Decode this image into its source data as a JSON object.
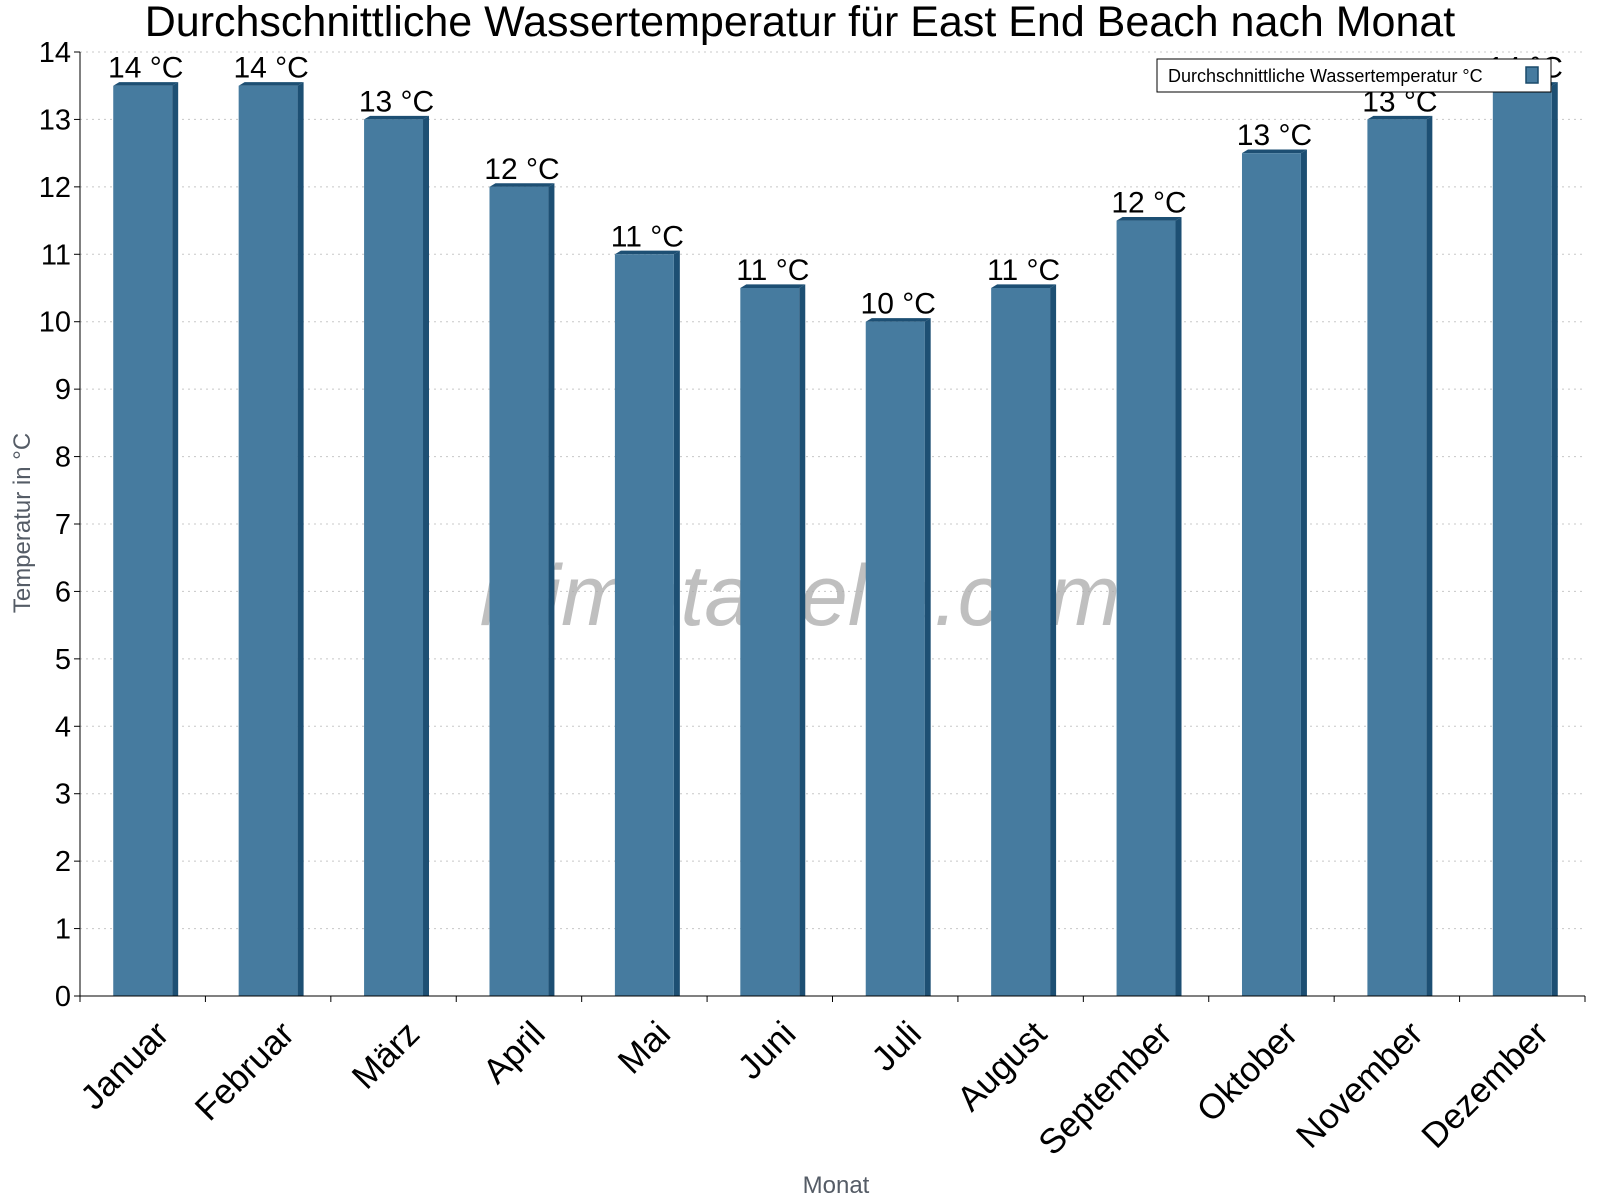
{
  "chart_data": {
    "type": "bar",
    "title": "Durchschnittliche Wassertemperatur für East End Beach nach Monat",
    "xlabel": "Monat",
    "ylabel": "Temperatur in °C",
    "ylim": [
      0,
      14
    ],
    "yticks": [
      "0",
      "1",
      "2",
      "3",
      "4",
      "5",
      "6",
      "7",
      "8",
      "9",
      "10",
      "11",
      "12",
      "13",
      "14"
    ],
    "grid": true,
    "legend_position": "top-right",
    "categories": [
      "Januar",
      "Februar",
      "März",
      "April",
      "Mai",
      "Juni",
      "Juli",
      "August",
      "September",
      "Oktober",
      "November",
      "Dezember"
    ],
    "series": [
      {
        "name": "Durchschnittliche Wassertemperatur °C",
        "color": "#467b9f",
        "values": [
          13.5,
          13.5,
          13,
          12,
          11,
          10.5,
          10,
          10.5,
          11.5,
          12.5,
          13,
          13.5
        ],
        "labels": [
          "14 °C",
          "14 °C",
          "13 °C",
          "12 °C",
          "11 °C",
          "11 °C",
          "10 °C",
          "11 °C",
          "12 °C",
          "13 °C",
          "13 °C",
          "14 °C"
        ]
      }
    ]
  },
  "watermark": "klimatabelle.com"
}
